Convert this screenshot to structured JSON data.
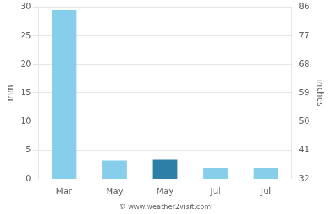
{
  "chart_data": {
    "type": "bar",
    "categories": [
      "Mar",
      "May",
      "May",
      "Jul",
      "Jul"
    ],
    "values": [
      29.5,
      3.3,
      3.4,
      1.9,
      1.9
    ],
    "colors": [
      "#87CEEB",
      "#87CEEB",
      "#2E7FA8",
      "#87CEEB",
      "#87CEEB"
    ],
    "ylabel": "mm",
    "y2label": "inches",
    "ylim": [
      0,
      30
    ],
    "yticks": [
      0,
      5,
      10,
      15,
      20,
      25,
      30
    ],
    "y2lim": [
      32,
      86
    ],
    "y2ticks": [
      32,
      41,
      50,
      59,
      68,
      77,
      86
    ],
    "grid": true,
    "annotations": [
      "© www.weather2visit.com"
    ]
  }
}
